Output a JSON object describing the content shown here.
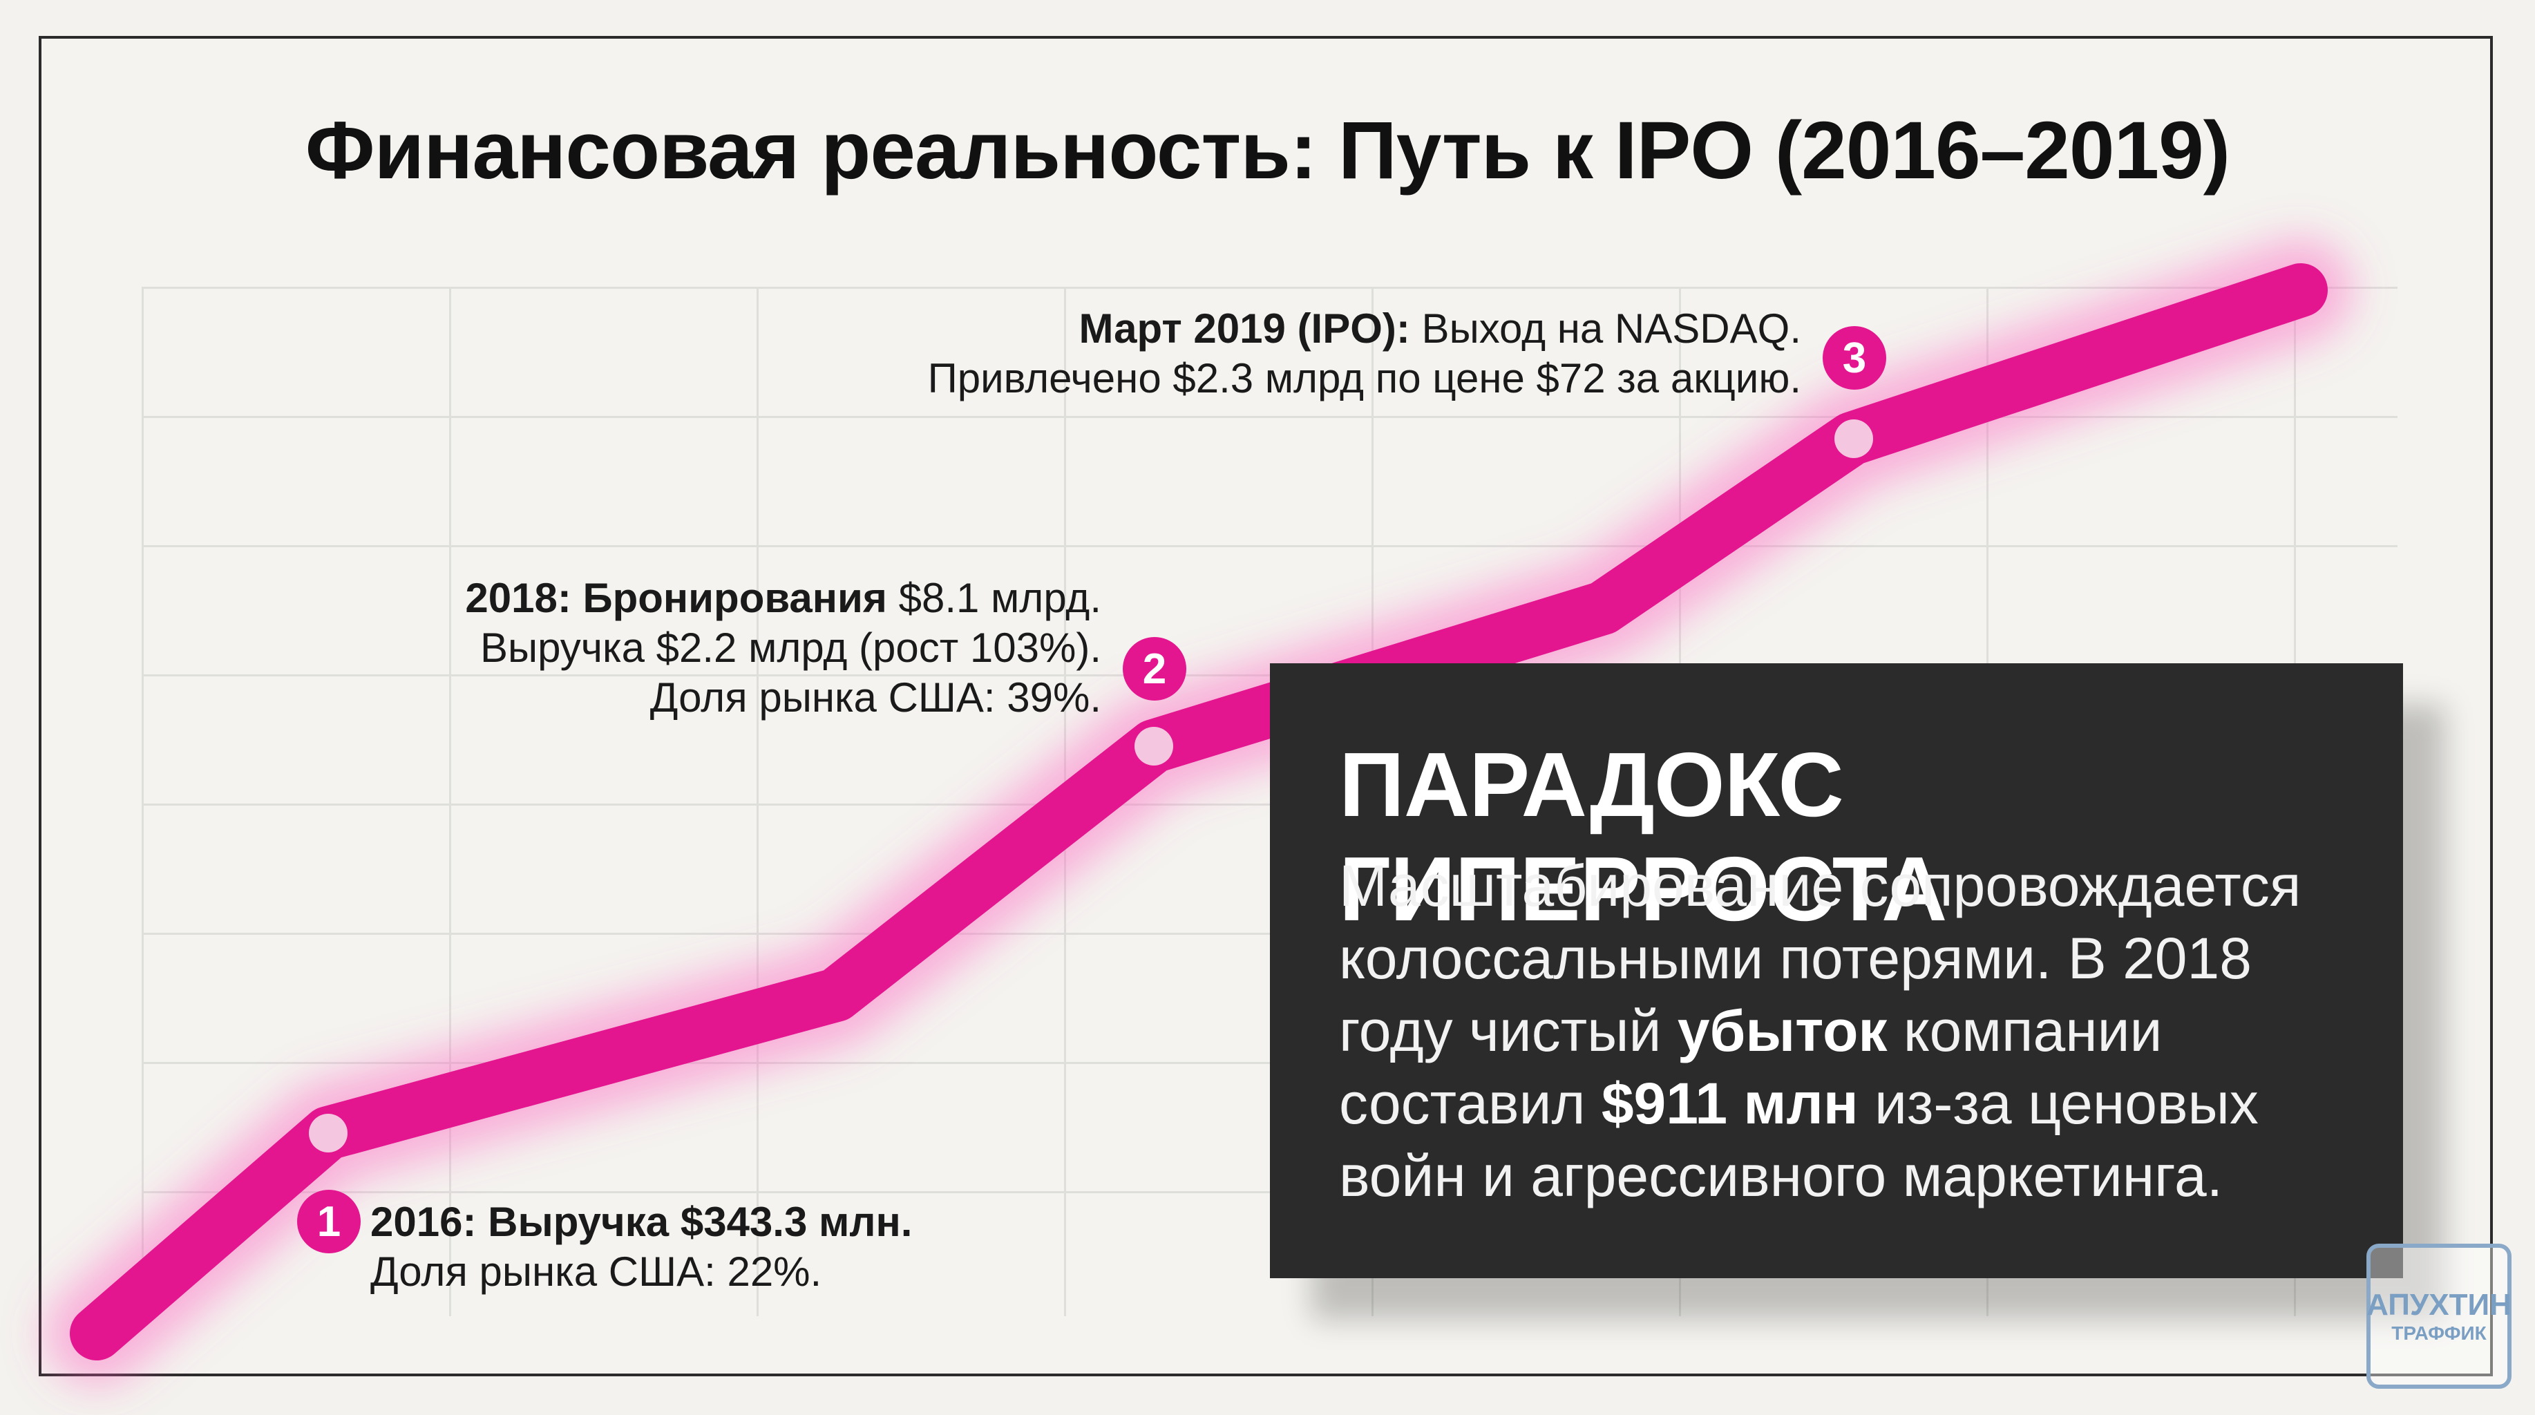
{
  "title": "Финансовая реальность: Путь к IPO (2016–2019)",
  "milestones": [
    {
      "marker": "1",
      "bold": "2016: Выручка $343.3 млн.",
      "line2": "Доля рынка США: 22%."
    },
    {
      "marker": "2",
      "bold": "2018: Бронирования",
      "rest": " $8.1 млрд.",
      "line2": "Выручка $2.2 млрд (рост 103%).",
      "line3": "Доля рынка США: 39%."
    },
    {
      "marker": "3",
      "bold": "Март 2019 (IPO):",
      "rest": " Выход на NASDAQ.",
      "line2": "Привлечено $2.3 млрд по цене $72 за акцию."
    }
  ],
  "panel": {
    "heading": "ПАРАДОКС ГИПЕРРОСТА",
    "p1": "Масштабирование сопровождается колоссальными потерями. В 2018 году чистый ",
    "b1": "убыток",
    "p2": " компании составил ",
    "b2": "$911 млн",
    "p3": " из-за ценовых войн и агрессивного маркетинга."
  },
  "colors": {
    "line": "#e4168f",
    "panel": "#2b2b2b",
    "background": "#f3f2ee"
  },
  "logo": {
    "line1": "АПУХТИН",
    "line2": "ТРАФФИК"
  }
}
